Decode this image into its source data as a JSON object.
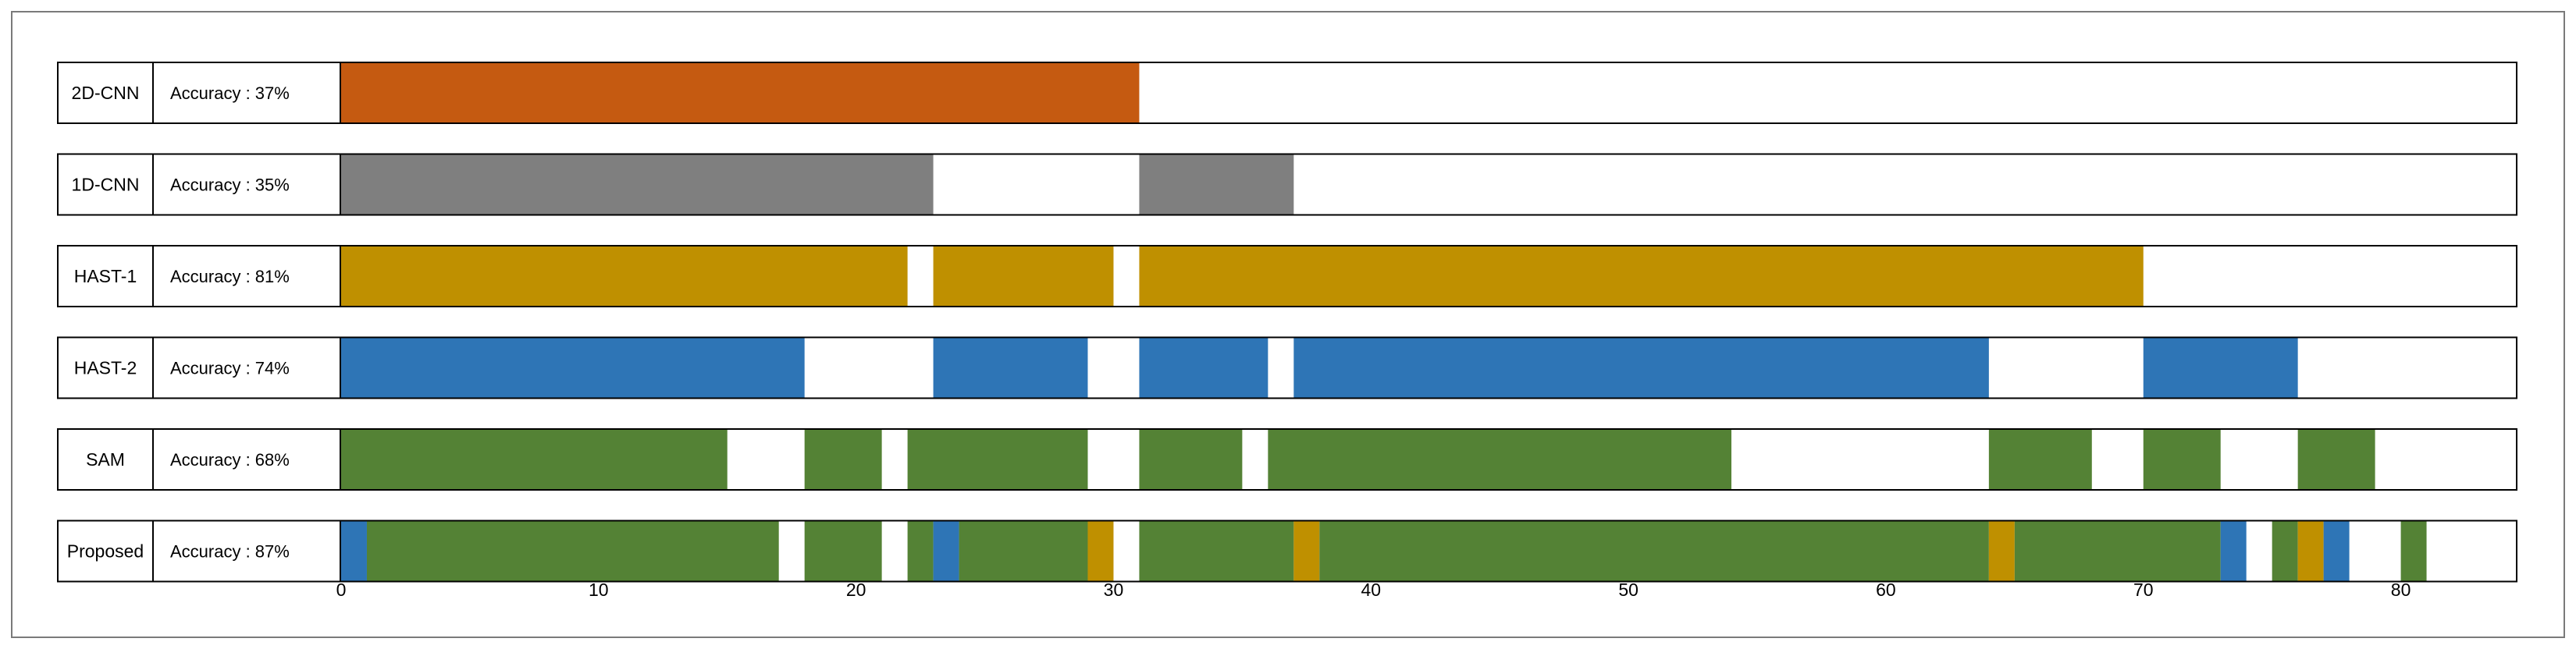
{
  "chart_data": {
    "type": "bar",
    "title": "",
    "xlabel": "",
    "ylabel": "",
    "xlim": [
      0,
      84.5
    ],
    "x_ticks": [
      0,
      10,
      20,
      30,
      40,
      50,
      60,
      70,
      80
    ],
    "grid": false,
    "legend": "none",
    "colors": {
      "orange": "#C55A11",
      "gray": "#7F7F7F",
      "gold": "#BF9000",
      "blue": "#2E75B6",
      "green": "#548235",
      "border": "#000000"
    },
    "rows": [
      {
        "name": "2D-CNN",
        "accuracy_label": "Accuracy : 37%",
        "segments": [
          {
            "start": 0,
            "end": 31,
            "color": "orange"
          }
        ]
      },
      {
        "name": "1D-CNN",
        "accuracy_label": "Accuracy : 35%",
        "segments": [
          {
            "start": 0,
            "end": 23,
            "color": "gray"
          },
          {
            "start": 31,
            "end": 37,
            "color": "gray"
          }
        ]
      },
      {
        "name": "HAST-1",
        "accuracy_label": "Accuracy : 81%",
        "segments": [
          {
            "start": 0,
            "end": 22,
            "color": "gold"
          },
          {
            "start": 23,
            "end": 30,
            "color": "gold"
          },
          {
            "start": 31,
            "end": 70,
            "color": "gold"
          }
        ]
      },
      {
        "name": "HAST-2",
        "accuracy_label": "Accuracy : 74%",
        "segments": [
          {
            "start": 0,
            "end": 18,
            "color": "blue"
          },
          {
            "start": 23,
            "end": 29,
            "color": "blue"
          },
          {
            "start": 31,
            "end": 36,
            "color": "blue"
          },
          {
            "start": 37,
            "end": 64,
            "color": "blue"
          },
          {
            "start": 70,
            "end": 76,
            "color": "blue"
          }
        ]
      },
      {
        "name": "SAM",
        "accuracy_label": "Accuracy : 68%",
        "segments": [
          {
            "start": 0,
            "end": 15,
            "color": "green"
          },
          {
            "start": 18,
            "end": 21,
            "color": "green"
          },
          {
            "start": 22,
            "end": 29,
            "color": "green"
          },
          {
            "start": 31,
            "end": 35,
            "color": "green"
          },
          {
            "start": 36,
            "end": 54,
            "color": "green"
          },
          {
            "start": 64,
            "end": 68,
            "color": "green"
          },
          {
            "start": 70,
            "end": 73,
            "color": "green"
          },
          {
            "start": 76,
            "end": 79,
            "color": "green"
          }
        ]
      },
      {
        "name": "Proposed",
        "accuracy_label": "Accuracy : 87%",
        "segments": [
          {
            "start": 0,
            "end": 1,
            "color": "blue"
          },
          {
            "start": 1,
            "end": 17,
            "color": "green"
          },
          {
            "start": 18,
            "end": 21,
            "color": "green"
          },
          {
            "start": 22,
            "end": 23,
            "color": "green"
          },
          {
            "start": 23,
            "end": 24,
            "color": "blue"
          },
          {
            "start": 24,
            "end": 29,
            "color": "green"
          },
          {
            "start": 29,
            "end": 30,
            "color": "gold"
          },
          {
            "start": 31,
            "end": 37,
            "color": "green"
          },
          {
            "start": 37,
            "end": 38,
            "color": "gold"
          },
          {
            "start": 38,
            "end": 64,
            "color": "green"
          },
          {
            "start": 64,
            "end": 65,
            "color": "gold"
          },
          {
            "start": 65,
            "end": 73,
            "color": "green"
          },
          {
            "start": 73,
            "end": 74,
            "color": "blue"
          },
          {
            "start": 75,
            "end": 76,
            "color": "green"
          },
          {
            "start": 76,
            "end": 77,
            "color": "gold"
          },
          {
            "start": 77,
            "end": 78,
            "color": "blue"
          },
          {
            "start": 80,
            "end": 81,
            "color": "green"
          }
        ]
      }
    ]
  }
}
